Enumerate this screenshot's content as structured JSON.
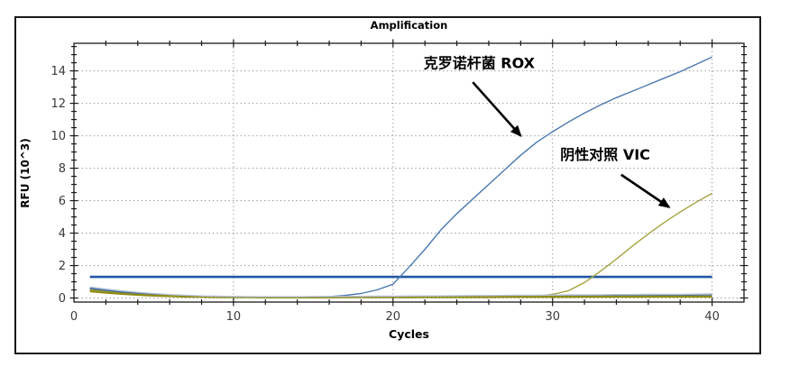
{
  "chart_data": {
    "type": "line",
    "title": "Amplification",
    "xlabel": "Cycles",
    "ylabel": "RFU (10^3)",
    "xlim": [
      0,
      42
    ],
    "ylim": [
      -0.25,
      15.7
    ],
    "x_major_ticks": [
      0,
      10,
      20,
      30,
      40
    ],
    "x_minor_step": 2,
    "y_major_ticks": [
      0,
      2,
      4,
      6,
      8,
      10,
      12,
      14
    ],
    "y_minor_step": 0.5,
    "grid": "dotted-major-both-axes",
    "legend": "none",
    "x": [
      1,
      2,
      3,
      4,
      5,
      6,
      7,
      8,
      9,
      10,
      11,
      12,
      13,
      14,
      15,
      16,
      17,
      18,
      19,
      20,
      21,
      22,
      23,
      24,
      25,
      26,
      27,
      28,
      29,
      30,
      31,
      32,
      33,
      34,
      35,
      36,
      37,
      38,
      39,
      40
    ],
    "series": [
      {
        "name": "克罗诺杆菌 ROX",
        "color": "#4b79b0",
        "width": 1.4,
        "values": [
          0.55,
          0.44,
          0.34,
          0.26,
          0.19,
          0.14,
          0.11,
          0.08,
          0.06,
          0.05,
          0.05,
          0.04,
          0.04,
          0.05,
          0.06,
          0.09,
          0.16,
          0.28,
          0.5,
          0.85,
          1.9,
          3.0,
          4.2,
          5.2,
          6.1,
          7.0,
          7.9,
          8.8,
          9.6,
          10.25,
          10.85,
          11.4,
          11.9,
          12.35,
          12.75,
          13.15,
          13.55,
          13.95,
          14.4,
          14.85
        ]
      },
      {
        "name": "阴性对照 VIC",
        "color": "#a6a33f",
        "width": 1.4,
        "values": [
          0.5,
          0.4,
          0.31,
          0.24,
          0.18,
          0.14,
          0.11,
          0.09,
          0.08,
          0.07,
          0.07,
          0.06,
          0.06,
          0.06,
          0.06,
          0.06,
          0.06,
          0.07,
          0.07,
          0.07,
          0.07,
          0.07,
          0.08,
          0.08,
          0.08,
          0.09,
          0.09,
          0.1,
          0.12,
          0.22,
          0.45,
          0.95,
          1.65,
          2.4,
          3.2,
          3.95,
          4.65,
          5.3,
          5.9,
          6.45
        ]
      },
      {
        "name": "baseline-blue-flat",
        "color": "#3c699f",
        "width": 1.6,
        "values": [
          0.6,
          0.48,
          0.38,
          0.29,
          0.22,
          0.17,
          0.13,
          0.1,
          0.08,
          0.07,
          0.06,
          0.06,
          0.06,
          0.06,
          0.07,
          0.07,
          0.08,
          0.08,
          0.09,
          0.09,
          0.1,
          0.1,
          0.11,
          0.11,
          0.12,
          0.12,
          0.13,
          0.13,
          0.14,
          0.14,
          0.15,
          0.15,
          0.16,
          0.16,
          0.17,
          0.17,
          0.18,
          0.18,
          0.19,
          0.2
        ]
      },
      {
        "name": "baseline-olive-flat",
        "color": "#8f8c15",
        "width": 2.4,
        "values": [
          0.42,
          0.33,
          0.26,
          0.2,
          0.15,
          0.12,
          0.09,
          0.08,
          0.06,
          0.05,
          0.05,
          0.04,
          0.04,
          0.04,
          0.04,
          0.04,
          0.05,
          0.05,
          0.05,
          0.05,
          0.05,
          0.06,
          0.06,
          0.06,
          0.06,
          0.06,
          0.07,
          0.07,
          0.07,
          0.07,
          0.07,
          0.08,
          0.08,
          0.08,
          0.08,
          0.09,
          0.09,
          0.09,
          0.09,
          0.09
        ]
      },
      {
        "name": "baseline-pale-flat",
        "color": "#b6c2d8",
        "width": 1.4,
        "values": [
          0.68,
          0.55,
          0.44,
          0.35,
          0.27,
          0.21,
          0.17,
          0.13,
          0.11,
          0.09,
          0.08,
          0.08,
          0.08,
          0.08,
          0.09,
          0.09,
          0.1,
          0.1,
          0.11,
          0.11,
          0.12,
          0.13,
          0.13,
          0.14,
          0.15,
          0.15,
          0.16,
          0.17,
          0.17,
          0.18,
          0.19,
          0.19,
          0.2,
          0.21,
          0.21,
          0.22,
          0.23,
          0.23,
          0.24,
          0.25
        ]
      }
    ],
    "threshold": {
      "value": 1.3,
      "x_start": 1,
      "x_end": 40,
      "color": "#2257a4",
      "width": 2.6
    },
    "annotations": [
      {
        "text": "克罗诺杆菌 ROX",
        "text_at": {
          "cycle": 25.4,
          "rfu": 14.45
        },
        "arrow_from": {
          "cycle": 25.0,
          "rfu": 13.3
        },
        "arrow_to": {
          "cycle": 28.0,
          "rfu": 10.0
        }
      },
      {
        "text": "阴性对照 VIC",
        "text_at": {
          "cycle": 33.3,
          "rfu": 8.8
        },
        "arrow_from": {
          "cycle": 34.3,
          "rfu": 7.6
        },
        "arrow_to": {
          "cycle": 37.3,
          "rfu": 5.6
        }
      }
    ]
  },
  "colors": {
    "grid": "#8b8b8b",
    "axis": "#1a1a1a",
    "tick_label": "#3a3a3a",
    "panel_border": "#1a1a1a",
    "annotation": "#000000",
    "background": "#ffffff"
  }
}
